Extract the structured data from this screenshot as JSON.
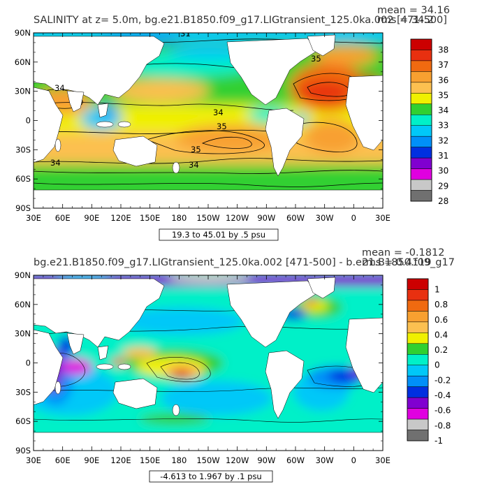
{
  "chart_data": [
    {
      "type": "heatmap",
      "title": "SALINITY at z=    5.0m, bg.e21.B1850.f09_g17.LIGtransient_125.0ka.002 [471-500]",
      "stats": [
        "mean = 34.16",
        "rms = 34.2"
      ],
      "xticks": [
        "30E",
        "60E",
        "90E",
        "120E",
        "150E",
        "180",
        "150W",
        "120W",
        "90W",
        "60W",
        "30W",
        "0",
        "30E"
      ],
      "yticks": [
        "90N",
        "60N",
        "30N",
        "0",
        "30S",
        "60S",
        "90S"
      ],
      "colorbar_labels": [
        "38",
        "37",
        "36",
        "35",
        "34",
        "33",
        "32",
        "31",
        "30",
        "29",
        "28"
      ],
      "colorbar_colors": [
        "#cc0000",
        "#e83010",
        "#f06a10",
        "#f8a030",
        "#fcc050",
        "#f0f000",
        "#30d030",
        "#00f0c8",
        "#00c8f8",
        "#0090f8",
        "#0030e0",
        "#8000d0",
        "#e000e0",
        "#c8c8c8",
        "#707070"
      ],
      "contour_labels": [
        "31",
        "34",
        "35",
        "34",
        "35",
        "34",
        "34",
        "35"
      ],
      "range_label": "19.3 to 45.01 by .5 psu",
      "lon_range": [
        30,
        390
      ],
      "lat_range": [
        -90,
        90
      ]
    },
    {
      "type": "heatmap",
      "title": "bg.e21.B1850.f09_g17.LIGtransient_125.0ka.002 [471-500] - b.e21.B1850.f09_g17",
      "stats": [
        "mean = -0.1812",
        "rms = 0.4119"
      ],
      "xticks": [
        "30E",
        "60E",
        "90E",
        "120E",
        "150E",
        "180",
        "150W",
        "120W",
        "90W",
        "60W",
        "30W",
        "0",
        "30E"
      ],
      "yticks": [
        "90N",
        "60N",
        "30N",
        "0",
        "30S",
        "60S",
        "90S"
      ],
      "colorbar_labels": [
        "1",
        "0.8",
        "0.6",
        "0.4",
        "0.2",
        "0",
        "-0.2",
        "-0.4",
        "-0.6",
        "-0.8",
        "-1"
      ],
      "colorbar_colors": [
        "#cc0000",
        "#e83010",
        "#f06a10",
        "#f8a030",
        "#fcc050",
        "#f0f000",
        "#30d030",
        "#00f0c8",
        "#00c8f8",
        "#0090f8",
        "#0030e0",
        "#8000d0",
        "#e000e0",
        "#c8c8c8",
        "#707070"
      ],
      "range_label": "-4.613 to 1.967 by .1 psu",
      "lon_range": [
        30,
        390
      ],
      "lat_range": [
        -90,
        90
      ]
    }
  ]
}
